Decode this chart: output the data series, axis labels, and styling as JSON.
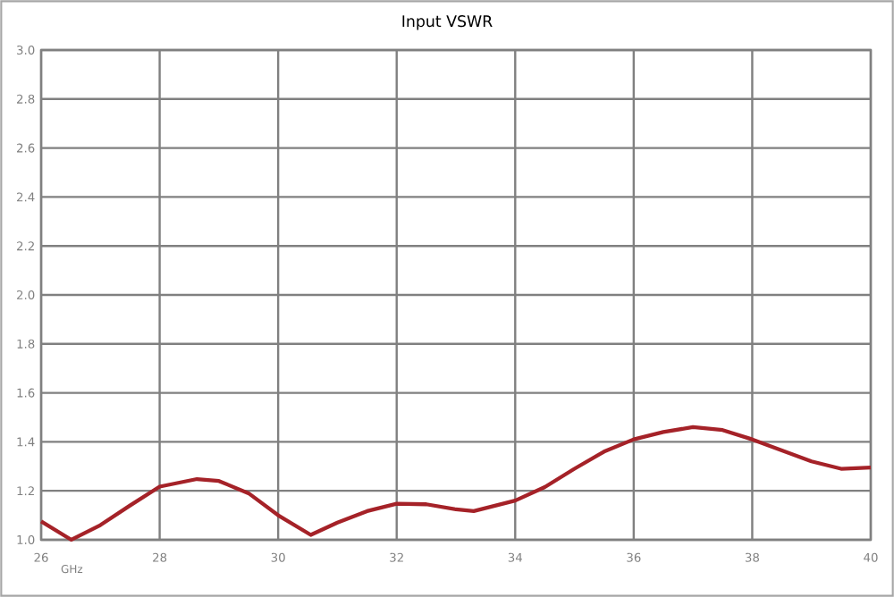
{
  "chart_data": {
    "type": "line",
    "title": "Input VSWR",
    "xlabel": "GHz",
    "xlim": [
      26,
      40
    ],
    "xticks": [
      26,
      28,
      30,
      32,
      34,
      36,
      38,
      40
    ],
    "ylim": [
      1.0,
      3.0
    ],
    "yticks": [
      {
        "value": 1.0,
        "label": "1.0"
      },
      {
        "value": 1.2,
        "label": "1.2"
      },
      {
        "value": 1.4,
        "label": "1.4"
      },
      {
        "value": 1.6,
        "label": "1.6"
      },
      {
        "value": 1.8,
        "label": "1.8"
      },
      {
        "value": 2.0,
        "label": "2.0"
      },
      {
        "value": 2.2,
        "label": "2.2"
      },
      {
        "value": 2.4,
        "label": "2.4"
      },
      {
        "value": 2.6,
        "label": "2.6"
      },
      {
        "value": 2.8,
        "label": "2.8"
      },
      {
        "value": 3.0,
        "label": "3.0"
      }
    ],
    "grid": true,
    "marker": "none",
    "line_style": "solid",
    "x": [
      26,
      26.51,
      27,
      27.5,
      28,
      28.63,
      29,
      29.5,
      30,
      30.55,
      31,
      31.5,
      32,
      32.5,
      33,
      33.3,
      34,
      34.5,
      35,
      35.5,
      36,
      36.5,
      37,
      37.5,
      38,
      38.5,
      39,
      39.5,
      40
    ],
    "series": [
      {
        "color": "#a52228",
        "values": [
          1.075,
          1.0,
          1.06,
          1.14,
          1.217,
          1.248,
          1.24,
          1.19,
          1.1,
          1.02,
          1.07,
          1.117,
          1.147,
          1.145,
          1.124,
          1.117,
          1.16,
          1.215,
          1.29,
          1.36,
          1.41,
          1.44,
          1.46,
          1.448,
          1.41,
          1.365,
          1.32,
          1.29,
          1.295
        ]
      }
    ]
  }
}
